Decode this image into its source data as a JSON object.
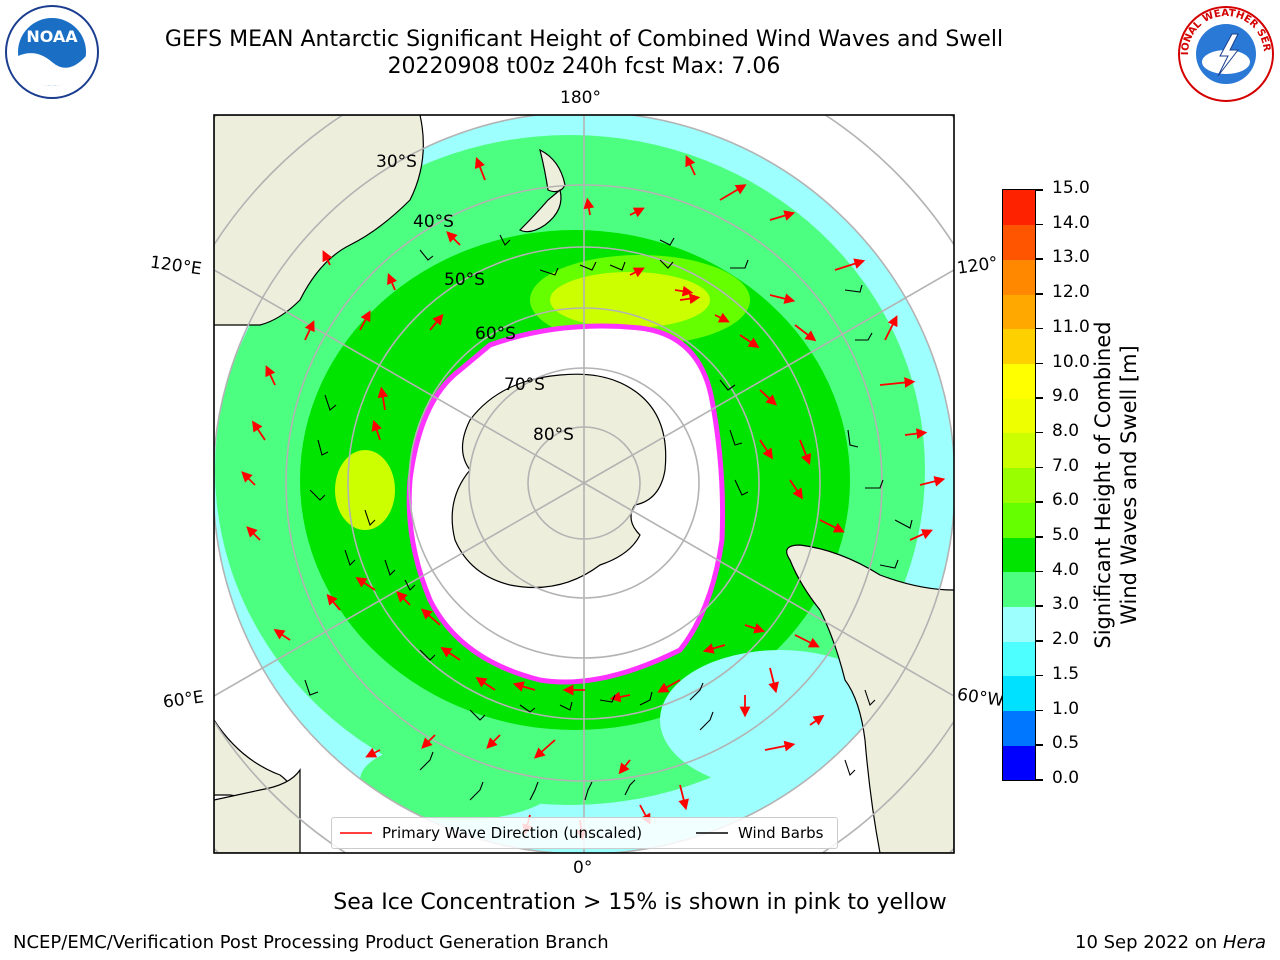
{
  "header": {
    "title_line1": "GEFS MEAN Antarctic Significant Height of Combined Wind Waves and Swell",
    "title_line2": "20220908 t00z 240h fcst   Max: 7.06"
  },
  "logos": {
    "left_logo_text": "NOAA",
    "right_logo_text": "NATIONAL WEATHER SERVICE"
  },
  "map": {
    "projection": "south-polar-stereographic",
    "longitude_labels": {
      "top": "180°",
      "upper_left": "120°E",
      "upper_right": "120°",
      "lower_left": "60°E",
      "lower_right": "60°W",
      "bottom": "0°"
    },
    "latitude_labels": [
      "30°S",
      "40°S",
      "50°S",
      "60°S",
      "70°S",
      "80°S"
    ],
    "colors": {
      "ocean_low": "#9effff",
      "ocean_mid": "#4dff80",
      "ocean_high": "#00e400",
      "ocean_peak": "#66ff00",
      "yellow_green": "#ccff00",
      "land": "#eeeedd",
      "grid": "#b3b3b3",
      "wave_arrow": "#ff0000",
      "ice_edge": "#ff33ff"
    }
  },
  "legend": {
    "wave_label": "Primary Wave Direction (unscaled)",
    "wind_label": "Wind Barbs"
  },
  "colorbar": {
    "title_line1": "Significant Height of Combined",
    "title_line2": "Wind Waves and Swell [m]",
    "ticks": [
      "15.0",
      "14.0",
      "13.0",
      "12.0",
      "11.0",
      "10.0",
      "9.0",
      "8.0",
      "7.0",
      "6.0",
      "5.0",
      "4.0",
      "3.0",
      "2.0",
      "1.5",
      "1.0",
      "0.5",
      "0.0"
    ],
    "segment_colors": [
      "#0000ff",
      "#0077ff",
      "#00e0ff",
      "#4dffff",
      "#9effff",
      "#4dff80",
      "#00e400",
      "#66ff00",
      "#99ff00",
      "#ccff00",
      "#eeff00",
      "#ffff00",
      "#ffd000",
      "#ffa800",
      "#ff8800",
      "#ff5500",
      "#ff2200"
    ]
  },
  "footer": {
    "note": "Sea Ice Concentration > 15% is shown in pink to yellow",
    "left": "NCEP/EMC/Verification Post Processing Product Generation Branch",
    "right_date": "10 Sep 2022 on ",
    "right_host": "Hera"
  }
}
